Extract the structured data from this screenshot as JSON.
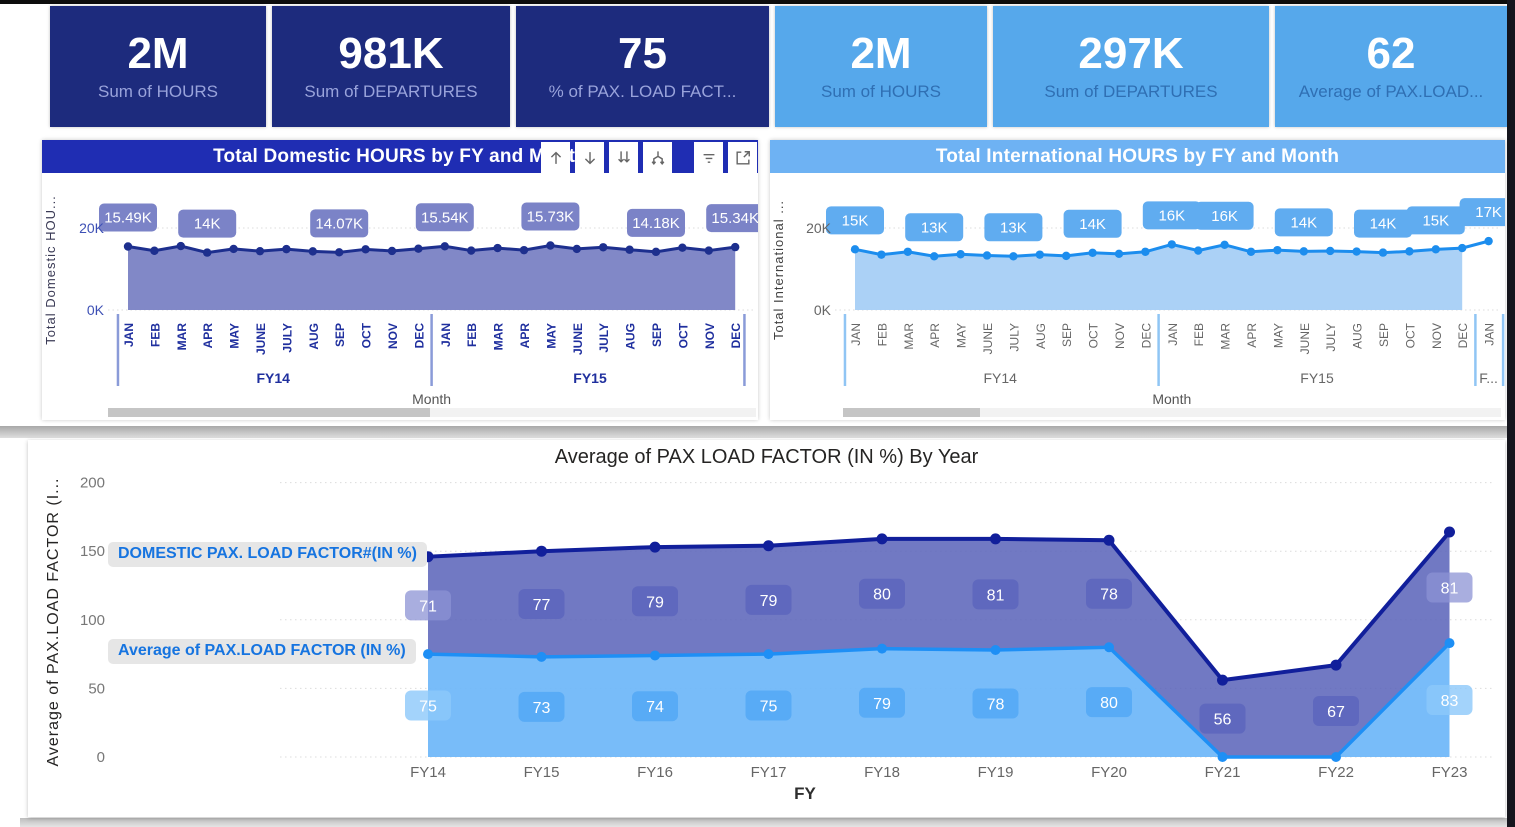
{
  "kpi_cards": [
    {
      "value": "2M",
      "label": "Sum of HOURS",
      "bg": "#1d2b7d",
      "value_color": "#ffffff",
      "label_color": "#99a3db"
    },
    {
      "value": "981K",
      "label": "Sum of DEPARTURES",
      "bg": "#1d2b7d",
      "value_color": "#ffffff",
      "label_color": "#99a3db"
    },
    {
      "value": "75",
      "label": "% of  PAX. LOAD FACT...",
      "bg": "#1d2b7d",
      "value_color": "#ffffff",
      "label_color": "#99a3db"
    },
    {
      "value": "2M",
      "label": "Sum of HOURS",
      "bg": "#56a8eb",
      "value_color": "#ffffff",
      "label_color": "#2f6fb3"
    },
    {
      "value": "297K",
      "label": "Sum of DEPARTURES",
      "bg": "#56a8eb",
      "value_color": "#ffffff",
      "label_color": "#2f6fb3"
    },
    {
      "value": "62",
      "label": "Average of  PAX.LOAD...",
      "bg": "#56a8eb",
      "value_color": "#ffffff",
      "label_color": "#2f6fb3"
    }
  ],
  "toolbar": {
    "icons": [
      "drill-up",
      "drill-down",
      "go-to-next-level",
      "expand-all-down",
      "filter",
      "focus-mode"
    ]
  },
  "chart_data": [
    {
      "type": "area",
      "title": "Total Domestic HOURS by FY and Month",
      "xlabel": "Month",
      "ylabel": "Total Domestic HOU...",
      "ylim": [
        0,
        20000
      ],
      "yticks": [
        "0K",
        "20K"
      ],
      "fy_groups": [
        "FY14",
        "FY15"
      ],
      "x_months": [
        "JAN",
        "FEB",
        "MAR",
        "APR",
        "MAY",
        "JUNE",
        "JULY",
        "AUG",
        "SEP",
        "OCT",
        "NOV",
        "DEC",
        "JAN",
        "FEB",
        "MAR",
        "APR",
        "MAY",
        "JUNE",
        "JULY",
        "AUG",
        "SEP",
        "OCT",
        "NOV",
        "DEC"
      ],
      "values": [
        15490,
        14450,
        15600,
        14000,
        14900,
        14350,
        14850,
        14300,
        14070,
        14800,
        14400,
        14950,
        15540,
        14500,
        15100,
        14600,
        15730,
        14900,
        15300,
        14700,
        14180,
        15200,
        14500,
        15340
      ],
      "data_labels": [
        {
          "i": 0,
          "t": "15.49K"
        },
        {
          "i": 3,
          "t": "14K"
        },
        {
          "i": 8,
          "t": "14.07K"
        },
        {
          "i": 12,
          "t": "15.54K"
        },
        {
          "i": 16,
          "t": "15.73K"
        },
        {
          "i": 20,
          "t": "14.18K"
        },
        {
          "i": 23,
          "t": "15.34K"
        }
      ],
      "colors": {
        "header_bg": "#1f2db3",
        "line": "#1d2f8e",
        "fill": "#7a82c4",
        "label_bg": "#7b83c7",
        "tick_text": "#3d50b5",
        "month_text": "#1f2f9e",
        "ytitle": "#3a3a55",
        "divider": "#8a9bd8",
        "axis_title": "#555555"
      }
    },
    {
      "type": "area",
      "title": "Total International HOURS by FY and Month",
      "xlabel": "Month",
      "ylabel": "Total International ...",
      "ylim": [
        0,
        20000
      ],
      "yticks": [
        "0K",
        "20K"
      ],
      "fy_groups": [
        "FY14",
        "FY15",
        "F..."
      ],
      "x_months": [
        "JAN",
        "FEB",
        "MAR",
        "APR",
        "MAY",
        "JUNE",
        "JULY",
        "AUG",
        "SEP",
        "OCT",
        "NOV",
        "DEC",
        "JAN",
        "FEB",
        "MAR",
        "APR",
        "MAY",
        "JUNE",
        "JULY",
        "AUG",
        "SEP",
        "OCT",
        "NOV",
        "DEC",
        "JAN"
      ],
      "values": [
        14800,
        13500,
        14200,
        13100,
        13600,
        13300,
        13100,
        13500,
        13200,
        13950,
        13700,
        14200,
        16000,
        14500,
        15900,
        14200,
        14600,
        14300,
        14400,
        14250,
        14000,
        14300,
        14800,
        15100,
        16800
      ],
      "data_labels": [
        {
          "i": 0,
          "t": "15K"
        },
        {
          "i": 3,
          "t": "13K"
        },
        {
          "i": 6,
          "t": "13K"
        },
        {
          "i": 9,
          "t": "14K"
        },
        {
          "i": 12,
          "t": "16K"
        },
        {
          "i": 14,
          "t": "16K"
        },
        {
          "i": 17,
          "t": "14K"
        },
        {
          "i": 20,
          "t": "14K"
        },
        {
          "i": 22,
          "t": "15K"
        },
        {
          "i": 24,
          "t": "17K"
        }
      ],
      "colors": {
        "header_bg": "#6eb2f3",
        "line": "#1c8dee",
        "fill": "#a6cff6",
        "label_bg": "#60acf0",
        "tick_text": "#666666",
        "month_text": "#666666",
        "ytitle": "#404040",
        "divider": "#90c5f4",
        "axis_title": "#555555"
      }
    },
    {
      "type": "area",
      "stacked": true,
      "title": "Average of PAX LOAD FACTOR (IN %) By Year",
      "xlabel": "FY",
      "ylabel": "Average of PAX.LOAD FACTOR (I...",
      "ylim": [
        0,
        200
      ],
      "yticks": [
        0,
        50,
        100,
        150,
        200
      ],
      "grid": true,
      "categories": [
        "FY14",
        "FY15",
        "FY16",
        "FY17",
        "FY18",
        "FY19",
        "FY20",
        "FY21",
        "FY22",
        "FY23"
      ],
      "series": [
        {
          "name": "DOMESTIC PAX. LOAD FACTOR#(IN %)",
          "values": [
            71,
            77,
            79,
            79,
            80,
            81,
            78,
            56,
            67,
            81
          ],
          "line": "#111f9b",
          "fill": "rgba(88,97,184,0.85)",
          "label_bg": "rgba(94,103,190,0.95)",
          "label_bg_edge": "rgba(140,147,212,0.75)"
        },
        {
          "name": "Average of  PAX.LOAD FACTOR (IN %)",
          "values": [
            75,
            73,
            74,
            75,
            79,
            78,
            80,
            0,
            0,
            83
          ],
          "line": "#1e8ff5",
          "fill": "rgba(105,181,248,0.9)",
          "label_bg": "rgba(86,170,246,0.95)",
          "label_bg_edge": "rgba(140,200,250,0.8)"
        }
      ]
    }
  ]
}
